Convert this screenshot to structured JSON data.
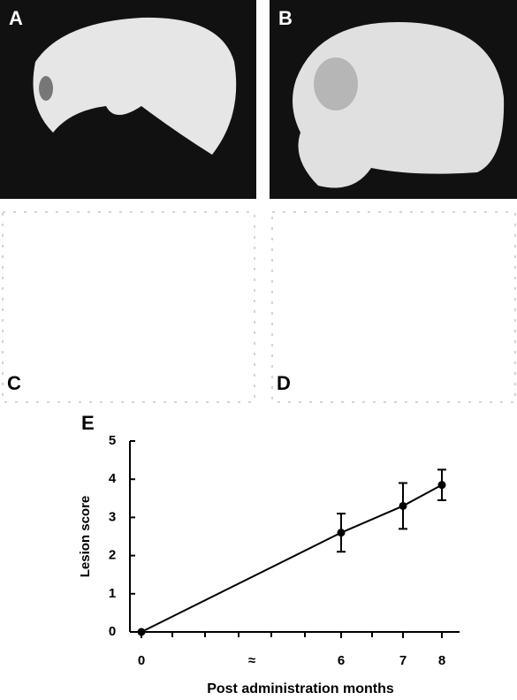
{
  "panels": [
    {
      "label": "A"
    },
    {
      "label": "B"
    },
    {
      "label": "C"
    },
    {
      "label": "D"
    }
  ],
  "chart_data": {
    "type": "line",
    "panel_label": "E",
    "x_label": "Post administration months",
    "y_label": "Lesion score",
    "categories": [
      "0",
      "6",
      "7",
      "8"
    ],
    "axis_break_label": "≈",
    "series": [
      {
        "color": "#000000",
        "values": [
          0,
          2.6,
          3.3,
          3.85
        ],
        "errors": [
          0,
          0.5,
          0.6,
          0.4
        ]
      }
    ],
    "ylim": [
      0,
      5
    ],
    "yticks": [
      0,
      1,
      2,
      3,
      4,
      5
    ]
  }
}
